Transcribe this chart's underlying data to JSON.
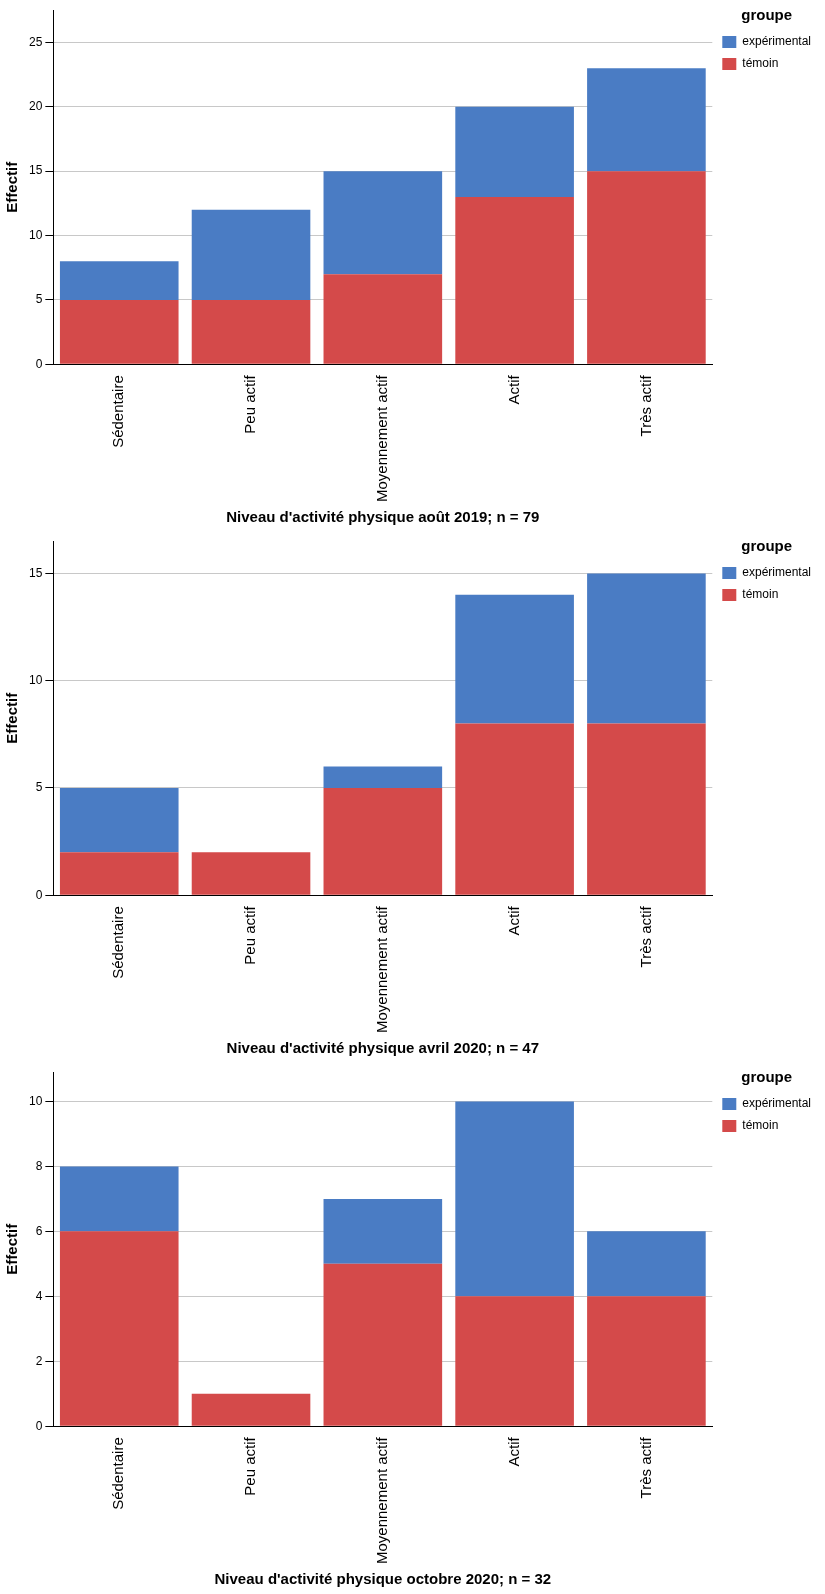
{
  "chart_data": [
    {
      "type": "bar",
      "xlabel": "Niveau d'activité physique août 2019; n = 79",
      "ylabel": "Effectif",
      "legend_title": "groupe",
      "categories": [
        "Sédentaire",
        "Peu actif",
        "Moyennement actif",
        "Actif",
        "Très actif"
      ],
      "stacked": true,
      "ylim": [
        0,
        27.5
      ],
      "yticks": [
        0,
        5,
        10,
        15,
        20,
        25
      ],
      "grid": "y",
      "legend": "top right",
      "series": [
        {
          "name": "témoin",
          "color": "#d44a4a",
          "values": [
            5,
            5,
            7,
            13,
            15
          ]
        },
        {
          "name": "expérimental",
          "color": "#4a7cc4",
          "values": [
            3,
            7,
            8,
            7,
            8
          ]
        }
      ]
    },
    {
      "type": "bar",
      "xlabel": "Niveau d'activité physique avril 2020; n = 47",
      "ylabel": "Effectif",
      "legend_title": "groupe",
      "categories": [
        "Sédentaire",
        "Peu actif",
        "Moyennement actif",
        "Actif",
        "Très actif"
      ],
      "stacked": true,
      "ylim": [
        0,
        16.5
      ],
      "yticks": [
        0,
        5,
        10,
        15
      ],
      "grid": "y",
      "legend": "top right",
      "series": [
        {
          "name": "témoin",
          "color": "#d44a4a",
          "values": [
            2,
            2,
            5,
            8,
            8
          ]
        },
        {
          "name": "expérimental",
          "color": "#4a7cc4",
          "values": [
            3,
            0,
            1,
            6,
            7
          ]
        }
      ]
    },
    {
      "type": "bar",
      "xlabel": "Niveau d'activité physique octobre 2020; n = 32",
      "ylabel": "Effectif",
      "legend_title": "groupe",
      "categories": [
        "Sédentaire",
        "Peu actif",
        "Moyennement actif",
        "Actif",
        "Très actif"
      ],
      "stacked": true,
      "ylim": [
        0,
        10.9
      ],
      "yticks": [
        0,
        2,
        4,
        6,
        8,
        10
      ],
      "grid": "y",
      "legend": "top right",
      "series": [
        {
          "name": "témoin",
          "color": "#d44a4a",
          "values": [
            6,
            1,
            5,
            4,
            4
          ]
        },
        {
          "name": "expérimental",
          "color": "#4a7cc4",
          "values": [
            2,
            0,
            2,
            6,
            2
          ]
        }
      ]
    }
  ]
}
